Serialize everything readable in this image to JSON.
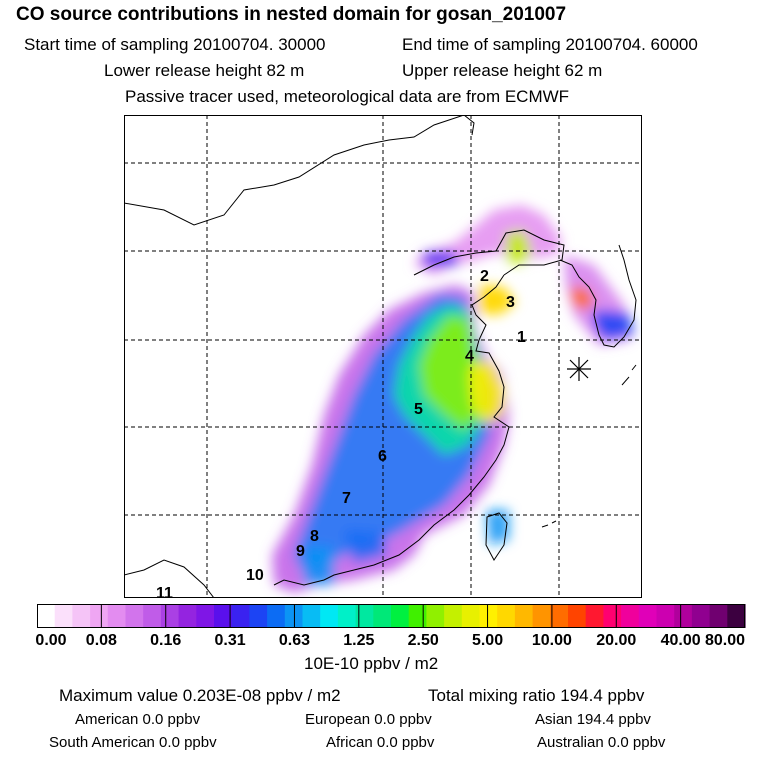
{
  "header": {
    "title": "CO  source contributions in nested domain for gosan_201007",
    "start_label": "Start time of sampling 20100704. 30000",
    "end_label": "End time of sampling 20100704. 60000",
    "lower_label": "Lower release height   82 m",
    "upper_label": "Upper release height   62 m",
    "tracer_note": "Passive tracer used, meteorological data are from ECMWF"
  },
  "map": {
    "region_labels": [
      "1",
      "2",
      "3",
      "4",
      "5",
      "6",
      "7",
      "8",
      "9",
      "10",
      "11"
    ],
    "receptor_marker": "asterisk-marker"
  },
  "colorbar": {
    "tick_labels": [
      "0.00",
      "0.08",
      "0.16",
      "0.31",
      "0.63",
      "1.25",
      "2.50",
      "5.00",
      "10.00",
      "20.00",
      "40.00",
      "80.00"
    ],
    "colors": [
      "#ffffff",
      "#fbe0fb",
      "#f5c4f7",
      "#efa6f3",
      "#e38cf0",
      "#d274ec",
      "#c05ce8",
      "#aa40e4",
      "#9424e0",
      "#7f16e6",
      "#5a10ec",
      "#3a22f0",
      "#1c44f4",
      "#0c6cf4",
      "#0c94f4",
      "#08bcf4",
      "#00e8f4",
      "#00f0c8",
      "#00e8a0",
      "#00e878",
      "#00f040",
      "#40f000",
      "#90f000",
      "#c4f000",
      "#e8f000",
      "#fff000",
      "#ffd800",
      "#ffb800",
      "#ff9400",
      "#ff6c00",
      "#ff4400",
      "#ff1830",
      "#ff0070",
      "#f0009c",
      "#e000b8",
      "#cc00b0",
      "#b0009c",
      "#900090",
      "#700070",
      "#3c0040"
    ],
    "units": "10E-10 ppbv / m2"
  },
  "stats": {
    "max_value": "Maximum value  0.203E-08 ppbv / m2",
    "total": "Total mixing ratio      194.4 ppbv",
    "american": "American        0.0 ppbv",
    "european": "European        0.0 ppbv",
    "asian": "Asian     194.4 ppbv",
    "south_american": "South American        0.0 ppbv",
    "african": "African        0.0 ppbv",
    "australian": "Australian        0.0 ppbv"
  }
}
